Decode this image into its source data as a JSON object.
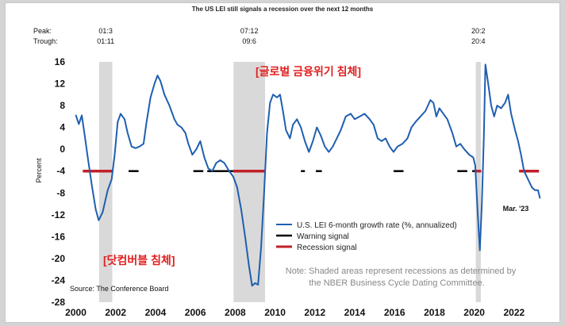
{
  "chart_data": {
    "type": "line",
    "title": "The US LEI still signals a recession over the next 12 months",
    "ylabel": "Percent",
    "xlabel": "",
    "ylim": [
      -28,
      16
    ],
    "xlim": [
      1999.7,
      2023.6
    ],
    "y_ticks": [
      "16",
      "12",
      "8",
      "4",
      "0",
      "-4",
      "-8",
      "-12",
      "-16",
      "-20",
      "-24",
      "-28"
    ],
    "x_ticks": [
      "2000",
      "2002",
      "2004",
      "2006",
      "2008",
      "2010",
      "2012",
      "2014",
      "2016",
      "2018",
      "2020",
      "2022"
    ],
    "peak_label": "Peak:",
    "trough_label": "Trough:",
    "recessions": [
      {
        "peak": "01:3",
        "trough": "01:11",
        "start": 2001.17,
        "end": 2001.83
      },
      {
        "peak": "07:12",
        "trough": "09:6",
        "start": 2007.92,
        "end": 2009.5
      },
      {
        "peak": "20:2",
        "trough": "20:4",
        "start": 2020.08,
        "end": 2020.33
      }
    ],
    "series": [
      {
        "name": "U.S. LEI 6-month growth rate (%, annualized)",
        "color": "#1f5fb0",
        "points": [
          [
            2000.0,
            6.3
          ],
          [
            2000.15,
            4.6
          ],
          [
            2000.3,
            6.2
          ],
          [
            2000.45,
            2.5
          ],
          [
            2000.6,
            -1.5
          ],
          [
            2000.8,
            -6.5
          ],
          [
            2001.0,
            -11.0
          ],
          [
            2001.15,
            -13.0
          ],
          [
            2001.35,
            -11.5
          ],
          [
            2001.6,
            -7.5
          ],
          [
            2001.8,
            -5.5
          ],
          [
            2001.95,
            -1.0
          ],
          [
            2002.1,
            5.0
          ],
          [
            2002.25,
            6.5
          ],
          [
            2002.45,
            5.5
          ],
          [
            2002.6,
            3.0
          ],
          [
            2002.8,
            0.5
          ],
          [
            2003.0,
            0.2
          ],
          [
            2003.2,
            0.5
          ],
          [
            2003.4,
            1.0
          ],
          [
            2003.55,
            5.0
          ],
          [
            2003.75,
            9.5
          ],
          [
            2003.95,
            12.0
          ],
          [
            2004.1,
            13.5
          ],
          [
            2004.25,
            12.5
          ],
          [
            2004.45,
            10.0
          ],
          [
            2004.7,
            8.0
          ],
          [
            2004.95,
            5.5
          ],
          [
            2005.1,
            4.5
          ],
          [
            2005.3,
            4.0
          ],
          [
            2005.5,
            3.0
          ],
          [
            2005.65,
            1.0
          ],
          [
            2005.85,
            -1.0
          ],
          [
            2006.05,
            0.0
          ],
          [
            2006.25,
            1.5
          ],
          [
            2006.45,
            -1.5
          ],
          [
            2006.65,
            -3.5
          ],
          [
            2006.85,
            -4.0
          ],
          [
            2007.05,
            -2.5
          ],
          [
            2007.25,
            -2.0
          ],
          [
            2007.45,
            -2.5
          ],
          [
            2007.7,
            -4.0
          ],
          [
            2007.9,
            -5.0
          ],
          [
            2008.1,
            -7.0
          ],
          [
            2008.3,
            -11.0
          ],
          [
            2008.5,
            -16.0
          ],
          [
            2008.7,
            -21.5
          ],
          [
            2008.85,
            -25.0
          ],
          [
            2009.0,
            -24.5
          ],
          [
            2009.15,
            -24.8
          ],
          [
            2009.3,
            -18.0
          ],
          [
            2009.45,
            -8.0
          ],
          [
            2009.6,
            3.0
          ],
          [
            2009.75,
            8.5
          ],
          [
            2009.9,
            10.0
          ],
          [
            2010.1,
            9.5
          ],
          [
            2010.25,
            10.0
          ],
          [
            2010.4,
            7.0
          ],
          [
            2010.55,
            3.5
          ],
          [
            2010.75,
            2.0
          ],
          [
            2010.9,
            4.5
          ],
          [
            2011.1,
            5.5
          ],
          [
            2011.3,
            4.0
          ],
          [
            2011.5,
            1.5
          ],
          [
            2011.7,
            -0.5
          ],
          [
            2011.9,
            1.5
          ],
          [
            2012.1,
            4.0
          ],
          [
            2012.3,
            2.5
          ],
          [
            2012.5,
            0.5
          ],
          [
            2012.7,
            -0.5
          ],
          [
            2012.9,
            0.5
          ],
          [
            2013.1,
            2.0
          ],
          [
            2013.3,
            3.5
          ],
          [
            2013.55,
            6.0
          ],
          [
            2013.8,
            6.5
          ],
          [
            2014.0,
            5.5
          ],
          [
            2014.25,
            6.0
          ],
          [
            2014.5,
            6.5
          ],
          [
            2014.75,
            5.5
          ],
          [
            2014.95,
            4.5
          ],
          [
            2015.15,
            2.0
          ],
          [
            2015.35,
            1.5
          ],
          [
            2015.55,
            2.0
          ],
          [
            2015.75,
            0.5
          ],
          [
            2015.95,
            -0.5
          ],
          [
            2016.15,
            0.5
          ],
          [
            2016.4,
            1.0
          ],
          [
            2016.65,
            2.0
          ],
          [
            2016.85,
            4.0
          ],
          [
            2017.05,
            5.0
          ],
          [
            2017.3,
            6.0
          ],
          [
            2017.55,
            7.0
          ],
          [
            2017.8,
            9.0
          ],
          [
            2017.95,
            8.5
          ],
          [
            2018.1,
            6.0
          ],
          [
            2018.25,
            7.5
          ],
          [
            2018.45,
            6.5
          ],
          [
            2018.65,
            5.5
          ],
          [
            2018.9,
            3.0
          ],
          [
            2019.1,
            0.5
          ],
          [
            2019.3,
            1.0
          ],
          [
            2019.5,
            0.0
          ],
          [
            2019.75,
            -1.0
          ],
          [
            2019.95,
            -1.5
          ],
          [
            2020.05,
            -3.0
          ],
          [
            2020.18,
            -12.0
          ],
          [
            2020.28,
            -18.5
          ],
          [
            2020.38,
            -10.0
          ],
          [
            2020.48,
            2.0
          ],
          [
            2020.56,
            15.5
          ],
          [
            2020.7,
            12.0
          ],
          [
            2020.85,
            8.0
          ],
          [
            2021.0,
            6.0
          ],
          [
            2021.15,
            8.0
          ],
          [
            2021.35,
            7.5
          ],
          [
            2021.55,
            8.5
          ],
          [
            2021.7,
            10.0
          ],
          [
            2021.85,
            6.5
          ],
          [
            2022.05,
            3.5
          ],
          [
            2022.2,
            1.5
          ],
          [
            2022.35,
            -1.0
          ],
          [
            2022.5,
            -4.0
          ],
          [
            2022.7,
            -5.5
          ],
          [
            2022.9,
            -7.0
          ],
          [
            2023.05,
            -7.5
          ],
          [
            2023.2,
            -7.5
          ],
          [
            2023.3,
            -9.0
          ]
        ]
      },
      {
        "name": "Warning signal",
        "color": "#000000",
        "segments": [
          [
            2002.65,
            2003.15
          ],
          [
            2005.9,
            2006.4
          ],
          [
            2006.6,
            2007.9
          ],
          [
            2011.3,
            2011.5
          ],
          [
            2012.05,
            2012.35
          ],
          [
            2015.95,
            2016.45
          ],
          [
            2019.15,
            2019.65
          ],
          [
            2019.9,
            2020.08
          ]
        ]
      },
      {
        "name": "Recession signal",
        "color": "#c0202a",
        "segments": [
          [
            2000.35,
            2001.85
          ],
          [
            2007.9,
            2009.5
          ],
          [
            2020.08,
            2020.35
          ],
          [
            2022.25,
            2023.25
          ]
        ]
      }
    ],
    "end_label": "Mar. '23",
    "note_line1": "Note: Shaded areas represent recessions as determined by",
    "note_line2": "the NBER Business Cycle Dating Committee.",
    "source": "Source: The Conference Board",
    "annotation_gfc": "[글로벌 금융위기 침체]",
    "annotation_dotcom": "[닷컴버블 침체]"
  }
}
